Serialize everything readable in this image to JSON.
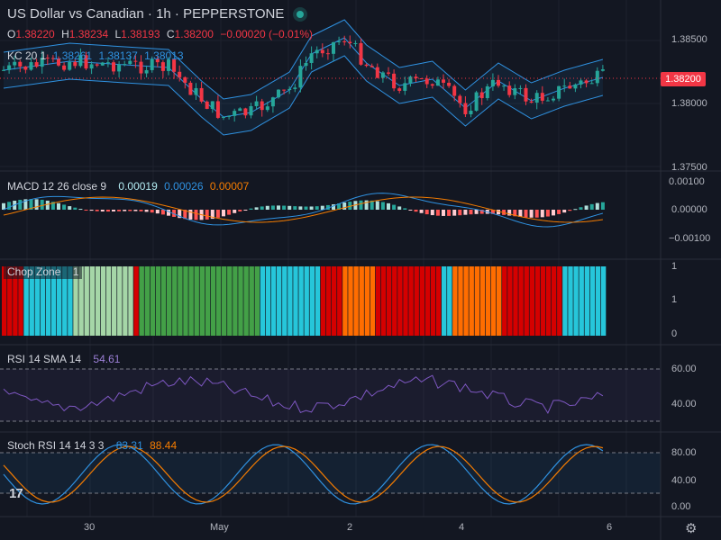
{
  "header": {
    "title": "US Dollar vs Canadian · 1h · PEPPERSTONE",
    "ohlc": {
      "o_label": "O",
      "o": "1.38220",
      "h_label": "H",
      "h": "1.38234",
      "l_label": "L",
      "l": "1.38193",
      "c_label": "C",
      "c": "1.38200",
      "change": "−0.00020 (−0.01%)"
    },
    "kc": {
      "label": "KC 20 1",
      "upper": "1.38261",
      "middle": "1.38137",
      "lower": "1.38013"
    }
  },
  "price_axis": {
    "ticks": [
      "1.38500",
      "1.38000",
      "1.37500"
    ],
    "current": "1.38200"
  },
  "macd": {
    "label": "MACD 12 26 close 9",
    "hist": "0.00019",
    "macd": "0.00026",
    "signal": "0.00007",
    "ticks": [
      "0.00100",
      "0.00000",
      "−0.00100"
    ]
  },
  "chop": {
    "label": "Chop Zone",
    "value": "1",
    "ticks": [
      "1",
      "1",
      "0"
    ]
  },
  "rsi": {
    "label": "RSI 14 SMA 14",
    "value": "54.61",
    "ticks": [
      "60.00",
      "40.00"
    ]
  },
  "stoch": {
    "label": "Stoch RSI 14 14 3 3",
    "k": "83.31",
    "d": "88.44",
    "ticks": [
      "80.00",
      "40.00",
      "0.00"
    ]
  },
  "time_axis": [
    "30",
    "May",
    "2",
    "4",
    "6"
  ],
  "icons": {
    "logo": "tradingview-logo-icon",
    "settings": "gear-icon"
  },
  "colors": {
    "background": "#131722",
    "up": "#26a69a",
    "down": "#f23645",
    "kc_line": "#2f91e0",
    "macd": "#2f91e0",
    "signal": "#f57c00",
    "rsi": "#7e57c2",
    "stoch_k": "#2f91e0",
    "stoch_d": "#f57c00"
  }
}
